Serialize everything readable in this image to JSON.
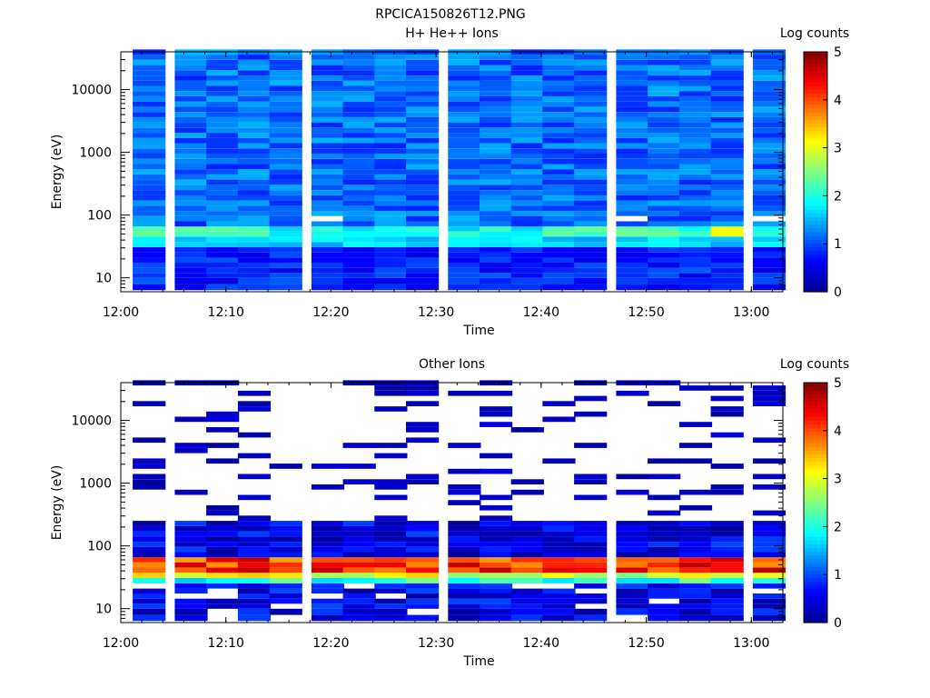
{
  "figure_title": "RPCICA150826T12.PNG",
  "colors": {
    "colormap": [
      "#00008f",
      "#0000ff",
      "#00ffff",
      "#ffff00",
      "#ff0000",
      "#800000"
    ],
    "empty": "#ffffff",
    "axis": "#000000"
  },
  "chart_data": [
    {
      "type": "heatmap",
      "title": "H+ He++ Ions",
      "xlabel": "Time",
      "ylabel": "Energy (eV)",
      "y_scale": "log",
      "xlim": [
        "12:00",
        "13:03"
      ],
      "ylim": [
        6,
        40000
      ],
      "x_ticks": [
        "12:00",
        "12:10",
        "12:20",
        "12:30",
        "12:40",
        "12:50",
        "13:00"
      ],
      "y_ticks": [
        "10",
        "100",
        "1000",
        "10000"
      ],
      "colorbar": {
        "label": "Log counts",
        "range": [
          0,
          5
        ],
        "ticks": [
          "0",
          "1",
          "2",
          "3",
          "4",
          "5"
        ]
      },
      "time_bins": [
        "12:01",
        "12:05",
        "12:08",
        "12:11",
        "12:14",
        "12:18",
        "12:21",
        "12:24",
        "12:27",
        "12:31",
        "12:34",
        "12:37",
        "12:40",
        "12:43",
        "12:47",
        "12:50",
        "12:53",
        "12:56",
        "13:00"
      ],
      "energy_bins_ev": [
        7,
        9,
        11,
        13,
        16,
        19,
        23,
        28,
        34,
        41,
        50,
        60,
        72,
        88,
        106,
        128,
        155,
        188,
        228,
        276,
        334,
        404,
        489,
        592,
        716,
        867,
        1050,
        1271,
        1539,
        1863,
        2255,
        2730,
        3305,
        4001,
        4843,
        5863,
        7098,
        8593,
        10402,
        12593,
        15245,
        18455,
        22341,
        27046,
        32742,
        39636
      ],
      "features": [
        {
          "energy_ev": [
            45,
            60
          ],
          "times": [
            "12:01",
            "12:05",
            "12:08",
            "12:11"
          ],
          "level": 2.5
        },
        {
          "energy_ev": [
            45,
            60
          ],
          "times": [
            "12:40",
            "12:43",
            "12:47",
            "12:50"
          ],
          "level": 2.2
        },
        {
          "energy_ev": [
            45,
            60
          ],
          "times": [
            "12:56"
          ],
          "level": 3.1
        },
        {
          "energy_ev": [
            80,
            88
          ],
          "times": [
            "12:18",
            "12:47",
            "13:00"
          ],
          "level": null
        },
        {
          "energy_ev": [
            6,
            40000
          ],
          "times": "background",
          "level": 1.0
        }
      ]
    },
    {
      "type": "heatmap",
      "title": "Other Ions",
      "xlabel": "Time",
      "ylabel": "Energy (eV)",
      "y_scale": "log",
      "xlim": [
        "12:00",
        "13:03"
      ],
      "ylim": [
        6,
        40000
      ],
      "x_ticks": [
        "12:00",
        "12:10",
        "12:20",
        "12:30",
        "12:40",
        "12:50",
        "13:00"
      ],
      "y_ticks": [
        "10",
        "100",
        "1000",
        "10000"
      ],
      "colorbar": {
        "label": "Log counts",
        "range": [
          0,
          5
        ],
        "ticks": [
          "0",
          "1",
          "2",
          "3",
          "4",
          "5"
        ]
      },
      "time_bins": [
        "12:01",
        "12:05",
        "12:08",
        "12:11",
        "12:14",
        "12:18",
        "12:21",
        "12:24",
        "12:27",
        "12:31",
        "12:34",
        "12:37",
        "12:40",
        "12:43",
        "12:47",
        "12:50",
        "12:53",
        "12:56",
        "13:00"
      ],
      "features": [
        {
          "energy_ev": [
            40,
            60
          ],
          "times": "all",
          "level": 4.2
        },
        {
          "energy_ev": [
            60,
            72
          ],
          "times": "all",
          "level": 2.0
        },
        {
          "energy_ev": [
            28,
            40
          ],
          "times": "all",
          "level": 2.8
        },
        {
          "energy_ev": [
            72,
            230
          ],
          "times": "all",
          "level": 0.6
        },
        {
          "energy_ev": [
            230,
            40000
          ],
          "times": "sparse",
          "level": 0.1
        },
        {
          "energy_ev": [
            6,
            28
          ],
          "times": "all",
          "level": 0.5
        }
      ]
    }
  ]
}
